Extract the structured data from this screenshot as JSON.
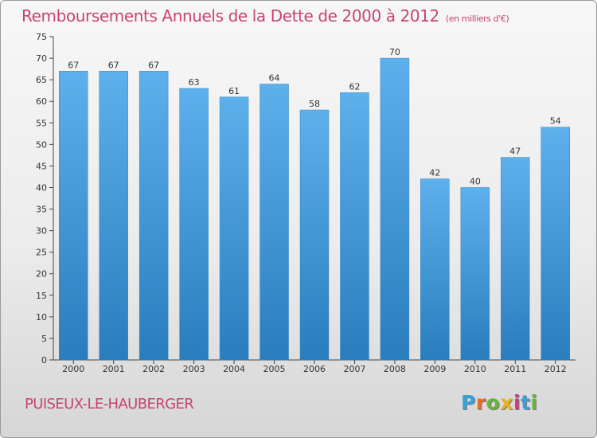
{
  "title": "Remboursements Annuels de la Dette de 2000 à 2012",
  "unit_note": "(en milliers d'€)",
  "commune": "PUISEUX-LE-HAUBERGER",
  "logo": {
    "letters": [
      "P",
      "r",
      "o",
      "x",
      "i",
      "t",
      "i"
    ],
    "colors": [
      "#3aa0d8",
      "#e46a2e",
      "#6ab43e",
      "#e8b21c",
      "#d43a7a",
      "#3aa0d8",
      "#6ab43e"
    ]
  },
  "colors": {
    "bar_top": "#5db0ec",
    "bar_bottom": "#2a7dbd",
    "title": "#c8446f"
  },
  "chart_data": {
    "type": "bar",
    "categories": [
      "2000",
      "2001",
      "2002",
      "2003",
      "2004",
      "2005",
      "2006",
      "2007",
      "2008",
      "2009",
      "2010",
      "2011",
      "2012"
    ],
    "values": [
      67,
      67,
      67,
      63,
      61,
      64,
      58,
      62,
      70,
      42,
      40,
      47,
      54
    ],
    "title": "Remboursements Annuels de la Dette de 2000 à 2012",
    "xlabel": "",
    "ylabel": "",
    "ylim": [
      0,
      75
    ],
    "yticks": [
      0,
      5,
      10,
      15,
      20,
      25,
      30,
      35,
      40,
      45,
      50,
      55,
      60,
      65,
      70,
      75
    ],
    "grid": false,
    "legend": "none"
  }
}
